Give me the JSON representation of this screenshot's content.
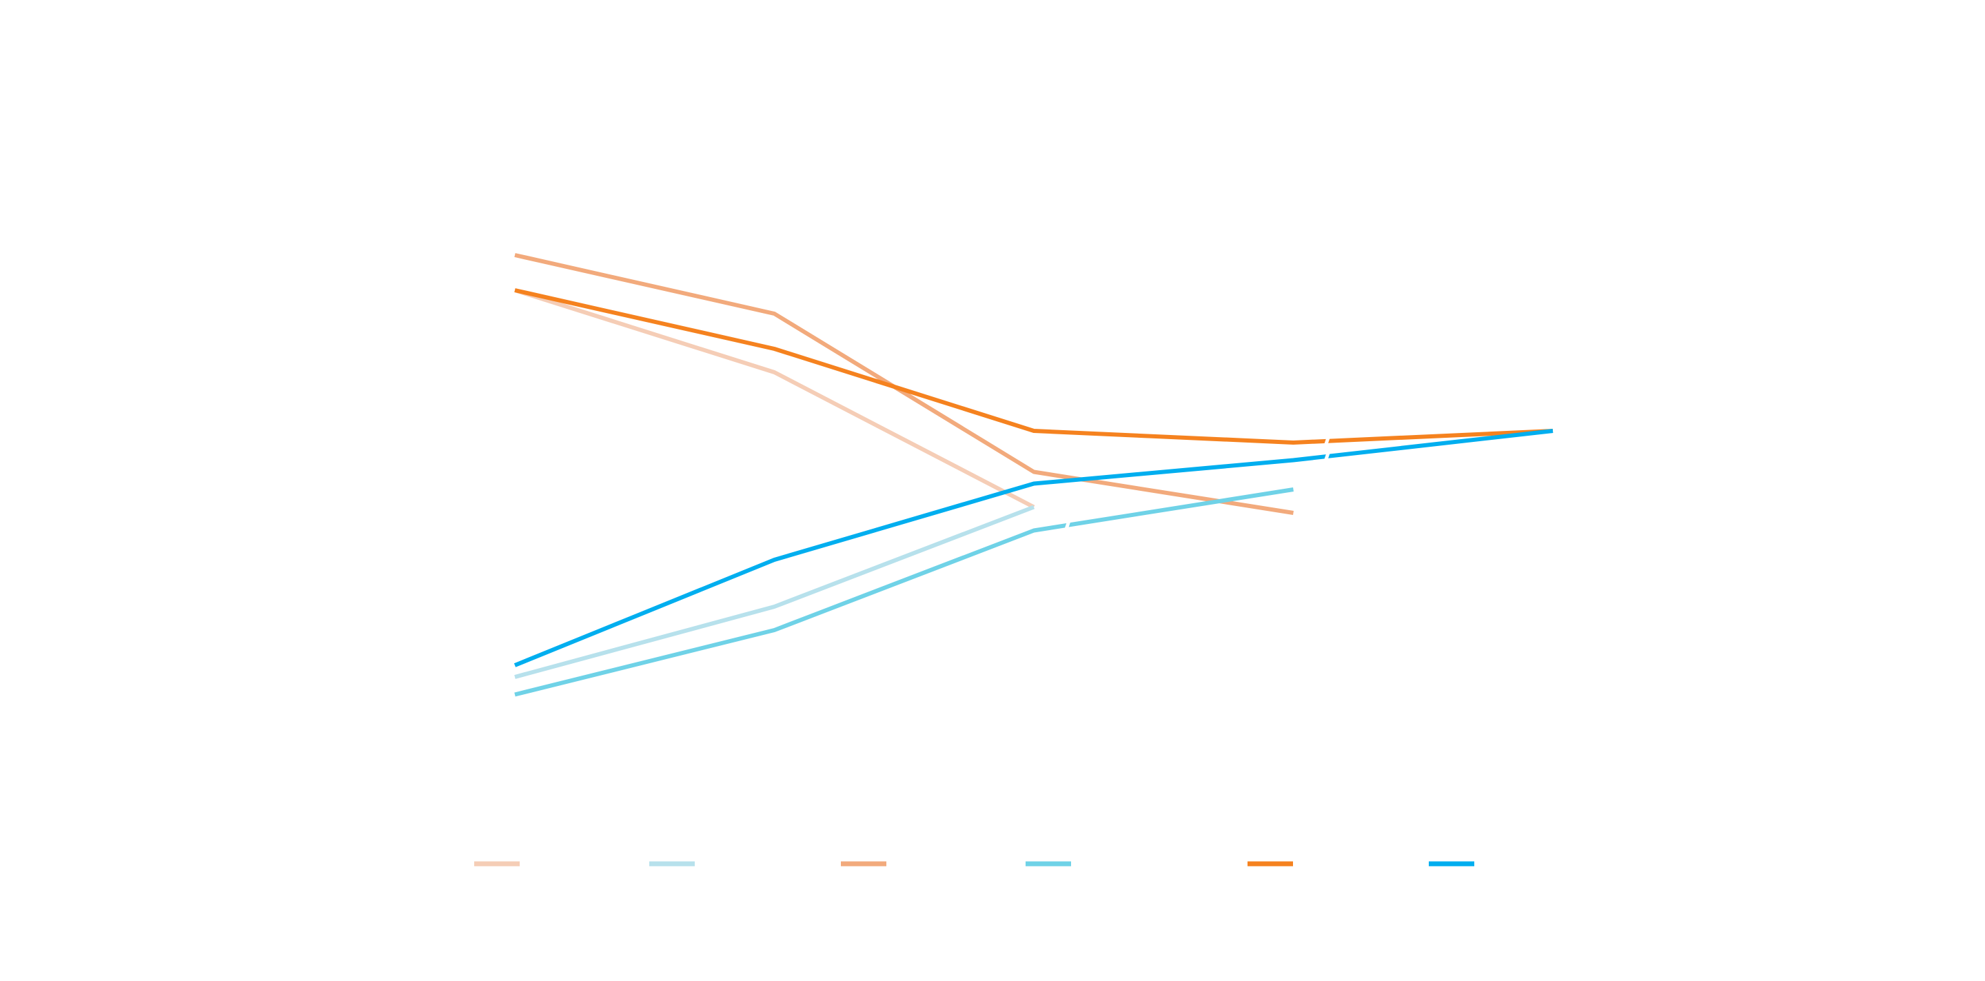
{
  "chart_data": {
    "type": "line",
    "title": "",
    "xlabel": "",
    "ylabel": "",
    "grid": false,
    "legend_position": "bottom",
    "x": [
      0,
      1,
      2,
      3,
      4
    ],
    "xlim": [
      0,
      4
    ],
    "ylim": [
      0,
      100
    ],
    "series": [
      {
        "name": "",
        "color": "#F5CDB6",
        "values": [
          74,
          60,
          37,
          null,
          null
        ]
      },
      {
        "name": "",
        "color": "#B7E1EC",
        "values": [
          8,
          20,
          37,
          null,
          null
        ]
      },
      {
        "name": "",
        "color": "#F2AA7C",
        "values": [
          80,
          70,
          43,
          36,
          null
        ]
      },
      {
        "name": "",
        "color": "#6FD2E7",
        "values": [
          5,
          16,
          33,
          40,
          null
        ]
      },
      {
        "name": "",
        "color": "#F5821F",
        "values": [
          74,
          64,
          50,
          48,
          50
        ]
      },
      {
        "name": "",
        "color": "#00AEEF",
        "values": [
          10,
          28,
          41,
          45,
          50
        ]
      }
    ],
    "gaps": [
      {
        "series": 3,
        "x": 2.13
      },
      {
        "series": 4,
        "x": 3.13
      },
      {
        "series": 5,
        "x": 3.13
      }
    ]
  }
}
